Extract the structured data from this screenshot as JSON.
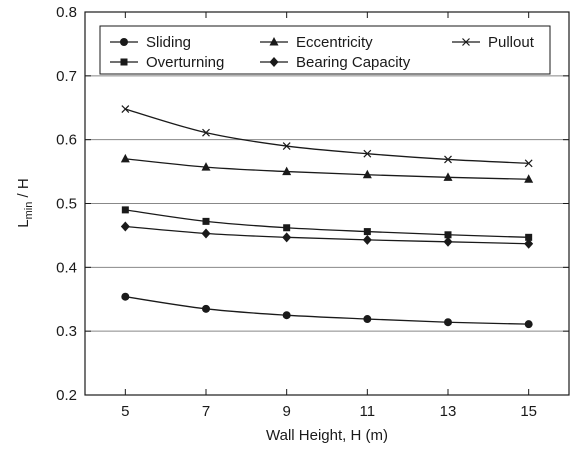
{
  "chart_data": {
    "type": "line",
    "title": "",
    "xlabel": "Wall Height, H (m)",
    "ylabel_main": "L",
    "ylabel_sub": "min",
    "ylabel_rest": " / H",
    "x": [
      5,
      7,
      9,
      11,
      13,
      15
    ],
    "xticks": [
      "5",
      "7",
      "9",
      "11",
      "13",
      "15"
    ],
    "yticks": [
      "0.2",
      "0.3",
      "0.4",
      "0.5",
      "0.6",
      "0.7",
      "0.8"
    ],
    "xlim": [
      4,
      16
    ],
    "ylim": [
      0.2,
      0.8
    ],
    "grid": "horizontal",
    "legend_position": "top",
    "series": [
      {
        "name": "Sliding",
        "marker": "circle",
        "values": [
          0.354,
          0.335,
          0.325,
          0.319,
          0.314,
          0.311
        ]
      },
      {
        "name": "Eccentricity",
        "marker": "triangle",
        "values": [
          0.57,
          0.557,
          0.55,
          0.545,
          0.541,
          0.538
        ]
      },
      {
        "name": "Pullout",
        "marker": "x",
        "values": [
          0.648,
          0.611,
          0.59,
          0.578,
          0.569,
          0.563
        ]
      },
      {
        "name": "Overturning",
        "marker": "square",
        "values": [
          0.49,
          0.472,
          0.462,
          0.456,
          0.451,
          0.447
        ]
      },
      {
        "name": "Bearing Capacity",
        "marker": "diamond",
        "values": [
          0.464,
          0.453,
          0.447,
          0.443,
          0.44,
          0.437
        ]
      }
    ],
    "colors": {
      "line": "#1a1a1a",
      "grid": "#888888",
      "frame": "#1a1a1a"
    }
  }
}
